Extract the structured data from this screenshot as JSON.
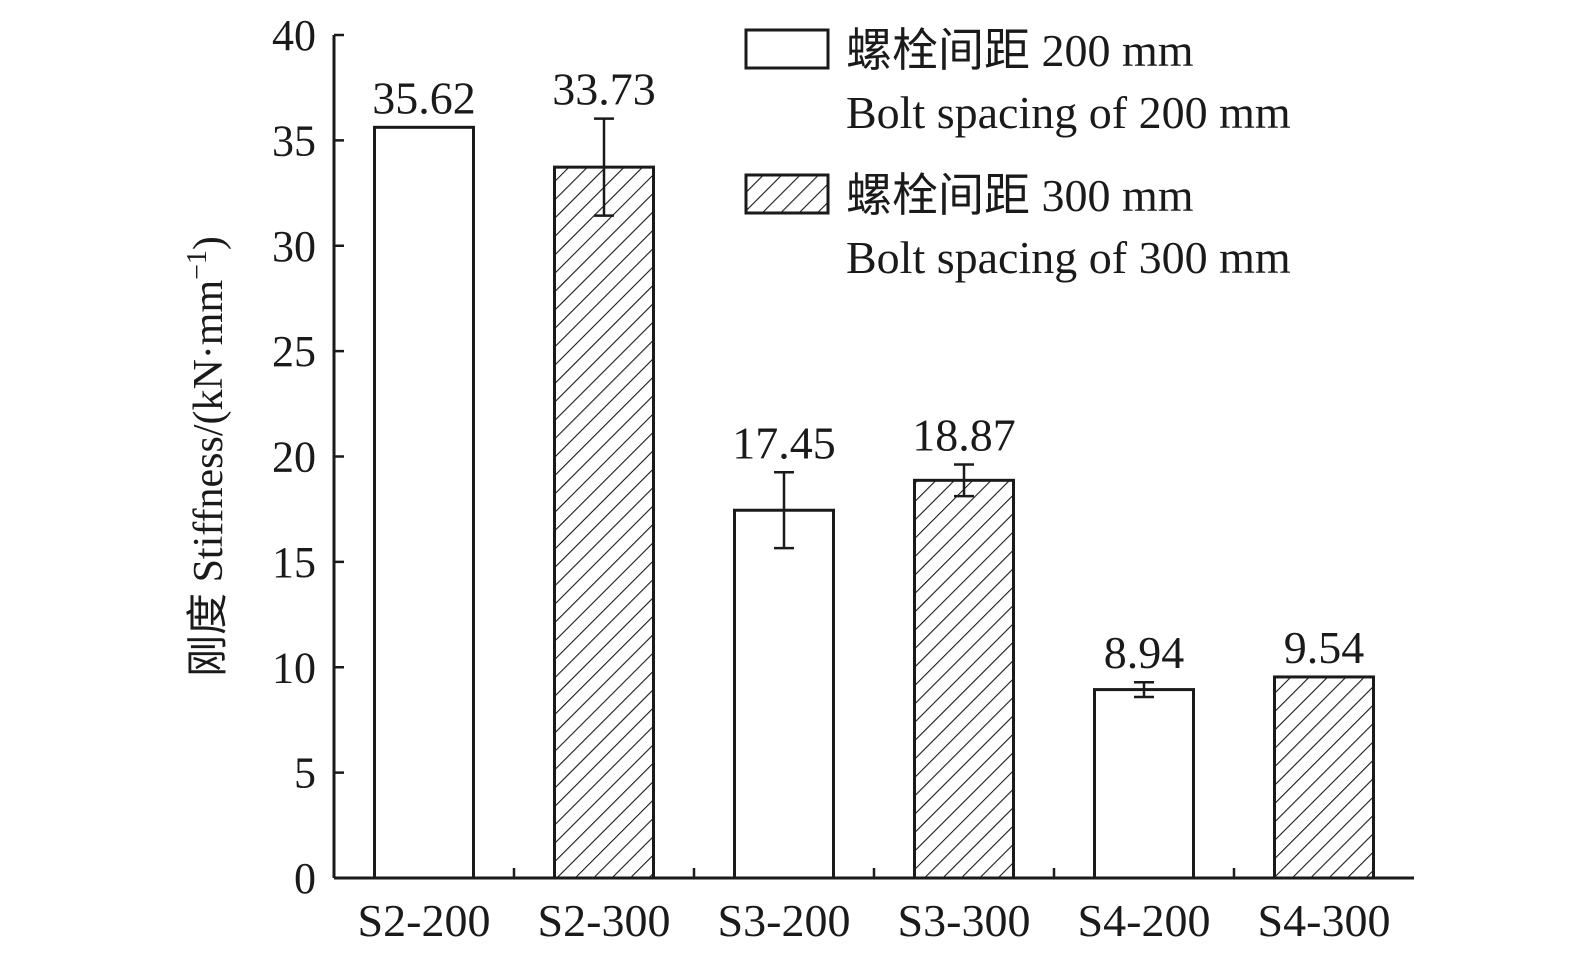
{
  "chart_data": {
    "type": "bar",
    "categories": [
      "S2-200",
      "S2-300",
      "S3-200",
      "S3-300",
      "S4-200",
      "S4-300"
    ],
    "values": [
      35.62,
      33.73,
      17.45,
      18.87,
      8.94,
      9.54
    ],
    "value_labels": [
      "35.62",
      "33.73",
      "17.45",
      "18.87",
      "8.94",
      "9.54"
    ],
    "error_bars": [
      null,
      2.3,
      1.8,
      0.75,
      0.35,
      null
    ],
    "bar_group": [
      "bolt200",
      "bolt300",
      "bolt200",
      "bolt300",
      "bolt200",
      "bolt300"
    ],
    "ylim": [
      0,
      40
    ],
    "yticks": [
      0,
      5,
      10,
      15,
      20,
      25,
      30,
      35,
      40
    ],
    "ylabel": "刚度 Stiffness/(kN·mm",
    "ylabel_sup": "−1",
    "ylabel_close": ")",
    "xlabel": "",
    "legend_position": "top-right",
    "legend": [
      {
        "key": "bolt200",
        "line1": "螺栓间距 200 mm",
        "line2": "Bolt spacing of 200 mm",
        "fill": "none"
      },
      {
        "key": "bolt300",
        "line1": "螺栓间距 300 mm",
        "line2": "Bolt spacing of 300 mm",
        "fill": "hatch"
      }
    ],
    "colors": {
      "outline": "#1a1a1a",
      "bar_fill": "#ffffff",
      "hatch": "#1a1a1a"
    }
  }
}
